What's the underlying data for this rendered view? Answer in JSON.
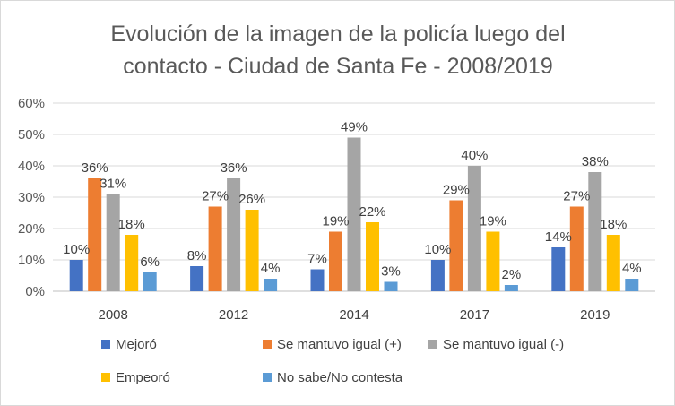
{
  "chart_data": {
    "type": "bar",
    "title_lines": [
      "Evolución de la imagen de la policía luego del",
      "contacto - Ciudad de Santa Fe - 2008/2019"
    ],
    "categories": [
      "2008",
      "2012",
      "2014",
      "2017",
      "2019"
    ],
    "ylim": [
      0,
      60
    ],
    "yticks": [
      0,
      10,
      20,
      30,
      40,
      50,
      60
    ],
    "ytick_labels": [
      "0%",
      "10%",
      "20%",
      "30%",
      "40%",
      "50%",
      "60%"
    ],
    "grid": true,
    "legend_position": "bottom",
    "series": [
      {
        "name": "Mejoró",
        "color": "#4472C4",
        "values": [
          10,
          8,
          7,
          10,
          14
        ],
        "labels": [
          "10%",
          "8%",
          "7%",
          "10%",
          "14%"
        ]
      },
      {
        "name": "Se mantuvo igual (+)",
        "color": "#ED7D31",
        "values": [
          36,
          27,
          19,
          29,
          27
        ],
        "labels": [
          "36%",
          "27%",
          "19%",
          "29%",
          "27%"
        ]
      },
      {
        "name": "Se mantuvo igual (-)",
        "color": "#A5A5A5",
        "values": [
          31,
          36,
          49,
          40,
          38
        ],
        "labels": [
          "31%",
          "36%",
          "49%",
          "40%",
          "38%"
        ]
      },
      {
        "name": "Empeoró",
        "color": "#FFC000",
        "values": [
          18,
          26,
          22,
          19,
          18
        ],
        "labels": [
          "18%",
          "26%",
          "22%",
          "19%",
          "18%"
        ]
      },
      {
        "name": "No sabe/No contesta",
        "color": "#5B9BD5",
        "values": [
          6,
          4,
          3,
          2,
          4
        ],
        "labels": [
          "6%",
          "4%",
          "3%",
          "2%",
          "4%"
        ]
      }
    ]
  }
}
